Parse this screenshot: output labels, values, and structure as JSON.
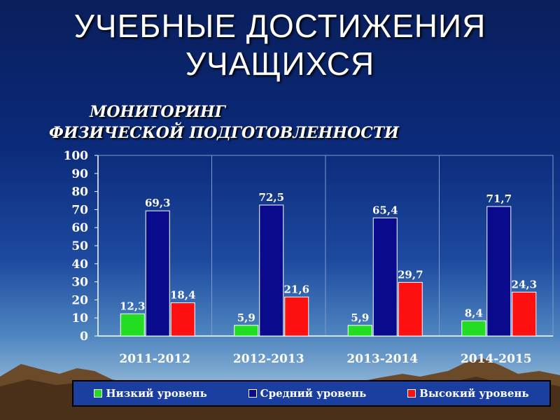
{
  "title": {
    "line1": "УЧЕБНЫЕ ДОСТИЖЕНИЯ",
    "line2": "УЧАЩИХСЯ"
  },
  "chart_data": {
    "type": "bar",
    "title_line1": "МОНИТОРИНГ",
    "title_line2": "ФИЗИЧЕСКОЙ ПОДГОТОВЛЕННОСТИ",
    "categories": [
      "2011-2012",
      "2012-2013",
      "2013-2014",
      "2014-2015"
    ],
    "series": [
      {
        "name": "Низкий уровень",
        "color": "#22dd22",
        "values": [
          12.3,
          5.9,
          5.9,
          8.4
        ],
        "labels": [
          "12,3",
          "5,9",
          "5,9",
          "8,4"
        ]
      },
      {
        "name": "Средний уровень",
        "color": "#0a0a8c",
        "values": [
          69.3,
          72.5,
          65.4,
          71.7
        ],
        "labels": [
          "69,3",
          "72,5",
          "65,4",
          "71,7"
        ]
      },
      {
        "name": "Высокий уровень",
        "color": "#ff1010",
        "values": [
          18.4,
          21.6,
          29.7,
          24.3
        ],
        "labels": [
          "18,4",
          "21,6",
          "29,7",
          "24,3"
        ]
      }
    ],
    "y_ticks": [
      "0",
      "10",
      "20",
      "30",
      "40",
      "50",
      "60",
      "70",
      "80",
      "90",
      "100"
    ],
    "ylim": [
      0,
      100
    ],
    "grid": "vertical",
    "legend_position": "bottom"
  }
}
